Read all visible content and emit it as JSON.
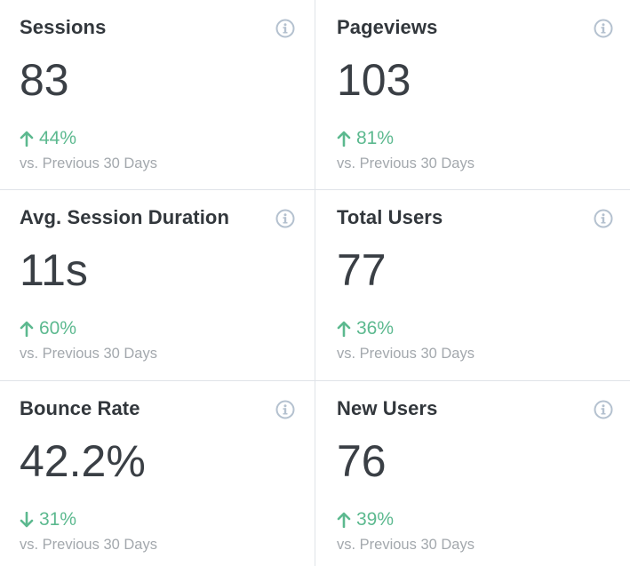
{
  "compare_label": "vs. Previous 30 Days",
  "colors": {
    "positive": "#5cb98f",
    "icon": "#b4c1cf",
    "title": "#32373c",
    "value": "#3a3f45",
    "muted": "#a3a8ad",
    "border": "#dfe3e8"
  },
  "metrics": [
    {
      "title": "Sessions",
      "value": "83",
      "change": "44%",
      "direction": "up",
      "icon": "info-icon"
    },
    {
      "title": "Pageviews",
      "value": "103",
      "change": "81%",
      "direction": "up",
      "icon": "info-icon"
    },
    {
      "title": "Avg. Session Duration",
      "value": "11s",
      "change": "60%",
      "direction": "up",
      "icon": "info-icon"
    },
    {
      "title": "Total Users",
      "value": "77",
      "change": "36%",
      "direction": "up",
      "icon": "info-icon"
    },
    {
      "title": "Bounce Rate",
      "value": "42.2%",
      "change": "31%",
      "direction": "down",
      "icon": "info-icon"
    },
    {
      "title": "New Users",
      "value": "76",
      "change": "39%",
      "direction": "up",
      "icon": "info-icon"
    }
  ]
}
